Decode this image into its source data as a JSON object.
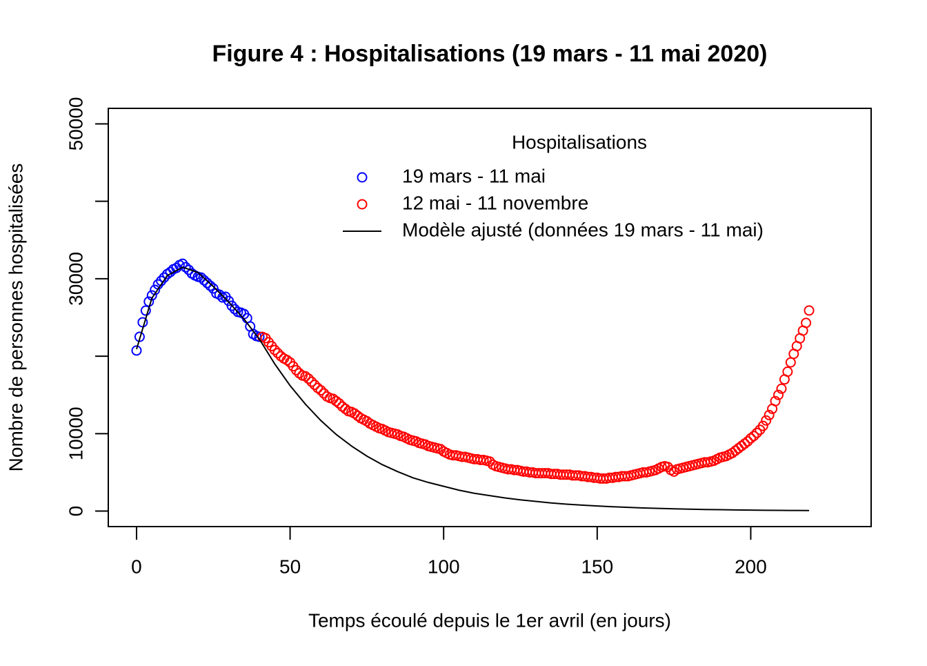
{
  "chart_data": {
    "type": "scatter",
    "title": "Figure 4 : Hospitalisations (19 mars - 11 mai 2020)",
    "x_label": "Temps écoulé depuis le 1er avril (en jours)",
    "y_label": "Nombre de personnes hospitalisées",
    "xlim": [
      -9.2,
      239.2
    ],
    "ylim": [
      -2000,
      52000
    ],
    "xticks": [
      0,
      50,
      100,
      150,
      200
    ],
    "yticks": [
      0,
      10000,
      {
        "value": 20000,
        "label": null
      },
      30000,
      {
        "value": 40000,
        "label": null
      },
      50000
    ],
    "legend_title": "Hospitalisations",
    "legend": "top-right",
    "series": [
      {
        "name": "19 mars - 11 mai",
        "color": "#0000ff",
        "mode": "points",
        "x": [
          0,
          1,
          2,
          3,
          4,
          5,
          6,
          7,
          8,
          9,
          10,
          11,
          12,
          13,
          14,
          15,
          16,
          17,
          18,
          19,
          20,
          21,
          22,
          23,
          24,
          25,
          26,
          27,
          28,
          29,
          30,
          31,
          32,
          33,
          34,
          35,
          36,
          37,
          38,
          39,
          40
        ],
        "values": [
          20730,
          22500,
          24380,
          25890,
          27050,
          27850,
          28560,
          29270,
          29720,
          30160,
          30600,
          30870,
          31230,
          31400,
          31760,
          31940,
          31490,
          31140,
          30690,
          30430,
          30250,
          30160,
          29800,
          29450,
          29090,
          28740,
          28110,
          27940,
          27580,
          27670,
          27140,
          26510,
          26070,
          25710,
          25620,
          25440,
          24910,
          23840,
          22860,
          22600,
          22500
        ]
      },
      {
        "name": "12 mai - 11 novembre",
        "color": "#ff0000",
        "mode": "points",
        "x": [
          41,
          42,
          43,
          44,
          45,
          46,
          47,
          48,
          49,
          50,
          51,
          52,
          53,
          54,
          55,
          56,
          57,
          58,
          59,
          60,
          61,
          62,
          63,
          64,
          65,
          66,
          67,
          68,
          69,
          70,
          71,
          72,
          73,
          74,
          75,
          76,
          77,
          78,
          79,
          80,
          81,
          82,
          83,
          84,
          85,
          86,
          87,
          88,
          89,
          90,
          91,
          92,
          93,
          94,
          95,
          96,
          97,
          98,
          99,
          100,
          101,
          102,
          103,
          104,
          105,
          106,
          107,
          108,
          109,
          110,
          111,
          112,
          113,
          114,
          115,
          116,
          117,
          118,
          119,
          120,
          121,
          122,
          123,
          124,
          125,
          126,
          127,
          128,
          129,
          130,
          131,
          132,
          133,
          134,
          135,
          136,
          137,
          138,
          139,
          140,
          141,
          142,
          143,
          144,
          145,
          146,
          147,
          148,
          149,
          150,
          151,
          152,
          153,
          154,
          155,
          156,
          157,
          158,
          159,
          160,
          161,
          162,
          163,
          164,
          165,
          166,
          167,
          168,
          169,
          170,
          171,
          172,
          173,
          174,
          175,
          176,
          177,
          178,
          179,
          180,
          181,
          182,
          183,
          184,
          185,
          186,
          187,
          188,
          189,
          190,
          191,
          192,
          193,
          194,
          195,
          196,
          197,
          198,
          199,
          200,
          201,
          202,
          203,
          204,
          205,
          206,
          207,
          208,
          209,
          210,
          211,
          212,
          213,
          214,
          215,
          216,
          217,
          218,
          219
        ],
        "values": [
          22500,
          22330,
          21800,
          21300,
          20800,
          20400,
          20000,
          19700,
          19500,
          19200,
          18700,
          18200,
          17800,
          17500,
          17400,
          17100,
          16700,
          16300,
          15900,
          15600,
          15200,
          14800,
          14600,
          14500,
          14200,
          13900,
          13500,
          13200,
          12900,
          12800,
          12600,
          12300,
          12000,
          11800,
          11600,
          11300,
          11100,
          10900,
          10700,
          10600,
          10400,
          10200,
          10100,
          10000,
          9900,
          9700,
          9600,
          9400,
          9200,
          9100,
          9000,
          8800,
          8700,
          8600,
          8400,
          8300,
          8200,
          8100,
          8000,
          7700,
          7500,
          7300,
          7200,
          7200,
          7100,
          7000,
          7000,
          6900,
          6800,
          6700,
          6700,
          6600,
          6600,
          6500,
          6400,
          6000,
          5800,
          5700,
          5600,
          5500,
          5400,
          5400,
          5300,
          5300,
          5200,
          5100,
          5100,
          5000,
          5000,
          4900,
          4900,
          4900,
          4900,
          4900,
          4800,
          4800,
          4800,
          4700,
          4700,
          4700,
          4700,
          4600,
          4600,
          4600,
          4500,
          4500,
          4400,
          4400,
          4300,
          4300,
          4200,
          4200,
          4200,
          4300,
          4300,
          4400,
          4400,
          4500,
          4500,
          4500,
          4600,
          4700,
          4800,
          4900,
          5000,
          5000,
          5100,
          5200,
          5300,
          5500,
          5700,
          5800,
          5700,
          5300,
          5100,
          5400,
          5500,
          5600,
          5700,
          5800,
          5900,
          6000,
          6100,
          6200,
          6300,
          6300,
          6400,
          6500,
          6700,
          6900,
          7000,
          7100,
          7300,
          7500,
          7800,
          8100,
          8400,
          8700,
          9000,
          9400,
          9700,
          10100,
          10500,
          11000,
          11700,
          12400,
          13200,
          14200,
          15000,
          15800,
          17000,
          18000,
          19200,
          20300,
          21300,
          22300,
          23300,
          24300,
          25900
        ]
      },
      {
        "name": "Modèle ajusté (données 19 mars - 11 mai)",
        "color": "#000000",
        "mode": "line",
        "x": [
          0,
          5,
          10,
          15,
          20,
          25,
          30,
          35,
          40,
          45,
          50,
          55,
          60,
          65,
          70,
          75,
          80,
          85,
          90,
          95,
          100,
          105,
          110,
          115,
          120,
          125,
          130,
          135,
          140,
          145,
          150,
          155,
          160,
          165,
          170,
          175,
          180,
          185,
          190,
          195,
          200,
          205,
          210,
          215,
          219
        ],
        "values": [
          20900,
          27500,
          30400,
          31500,
          30800,
          29000,
          27000,
          24800,
          22200,
          19000,
          16200,
          13800,
          11700,
          9900,
          8400,
          7100,
          6000,
          5100,
          4300,
          3700,
          3200,
          2700,
          2300,
          2000,
          1700,
          1450,
          1250,
          1050,
          900,
          770,
          660,
          560,
          480,
          410,
          350,
          300,
          250,
          210,
          180,
          150,
          130,
          110,
          90,
          80,
          70
        ]
      }
    ]
  }
}
